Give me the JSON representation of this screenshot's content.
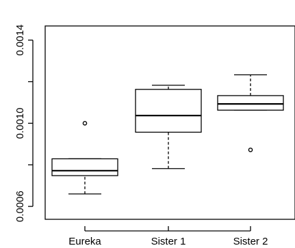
{
  "chart_data": {
    "type": "box",
    "title": "",
    "xlabel": "",
    "ylabel": "",
    "categories": [
      "Eureka",
      "Sister 1",
      "Sister 2"
    ],
    "boxes": [
      {
        "category": "Eureka",
        "whisker_low": 0.00066,
        "q1": 0.000748,
        "median": 0.000772,
        "q3": 0.000829,
        "whisker_high": 0.000829,
        "outliers": [
          0.001
        ]
      },
      {
        "category": "Sister 1",
        "whisker_low": 0.000782,
        "q1": 0.000957,
        "median": 0.001037,
        "q3": 0.001163,
        "whisker_high": 0.001183,
        "outliers": []
      },
      {
        "category": "Sister 2",
        "whisker_low": 0.001063,
        "q1": 0.001063,
        "median": 0.001093,
        "q3": 0.001133,
        "whisker_high": 0.001233,
        "outliers": [
          0.000872
        ]
      }
    ],
    "ylim": [
      0.000538,
      0.001468
    ],
    "yticks": [
      0.0006,
      0.001,
      0.0014
    ],
    "yticks_minor": [
      0.0008,
      0.0012
    ],
    "ytick_labels": [
      "0.0006",
      "0.0010",
      "0.0014"
    ],
    "grid": false,
    "legend": "none"
  }
}
